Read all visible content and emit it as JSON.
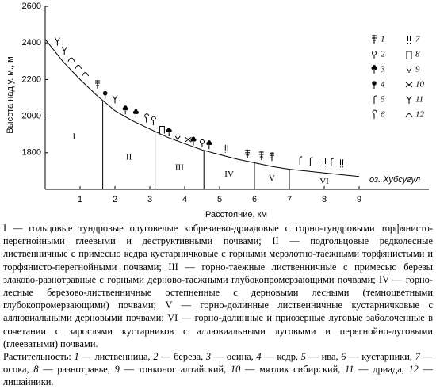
{
  "chart_data": {
    "type": "line",
    "y_label": "Высота над у. м., м",
    "x_label": "Расстояние, км",
    "xlim": [
      0,
      11
    ],
    "ylim": [
      1600,
      2600
    ],
    "xticks": [
      1,
      2,
      3,
      4,
      5,
      6,
      7,
      8,
      9
    ],
    "yticks": [
      1800,
      2000,
      2200,
      2400,
      2600
    ],
    "x": [
      0,
      0.5,
      1,
      1.5,
      2,
      2.5,
      3,
      3.5,
      4,
      4.5,
      5,
      5.5,
      6,
      6.5,
      7,
      7.5,
      8,
      8.5,
      9
    ],
    "series": [
      {
        "color": "#000000",
        "values": [
          2420,
          2300,
          2200,
          2110,
          2030,
          1975,
          1930,
          1885,
          1850,
          1815,
          1790,
          1765,
          1745,
          1725,
          1710,
          1700,
          1690,
          1680,
          1670
        ]
      }
    ],
    "zone_boundaries": [
      1.65,
      3.15,
      4.55,
      6.0,
      7.0
    ],
    "zone_labels": [
      "I",
      "II",
      "III",
      "IV",
      "V",
      "VI"
    ],
    "lake_label": "оз. Хубсугул",
    "markers": {
      "x": [
        0.35,
        0.55,
        0.75,
        0.95,
        1.15,
        1.5,
        1.72,
        2.0,
        2.3,
        2.6,
        2.9,
        3.1,
        3.35,
        3.55,
        3.8,
        4.1,
        4.25,
        4.5,
        4.7,
        5.2,
        5.8,
        6.2,
        6.5,
        7.3,
        7.6,
        8.0,
        8.2,
        8.5
      ],
      "y": [
        2385,
        2335,
        2290,
        2250,
        2210,
        2150,
        2095,
        2070,
        2010,
        1990,
        1965,
        1950,
        1905,
        1890,
        1860,
        1850,
        1840,
        1830,
        1820,
        1800,
        1770,
        1760,
        1755,
        1735,
        1730,
        1725,
        1725,
        1720
      ],
      "kind": [
        11,
        11,
        12,
        12,
        12,
        1,
        4,
        11,
        3,
        3,
        6,
        6,
        8,
        3,
        9,
        10,
        3,
        2,
        3,
        7,
        1,
        1,
        1,
        5,
        5,
        7,
        5,
        7
      ]
    },
    "legend": [
      "1",
      "2",
      "3",
      "4",
      "5",
      "6",
      "7",
      "8",
      "9",
      "10",
      "11",
      "12"
    ]
  },
  "caption": {
    "zones": "I — гольцовые тундровые олуговелые кобрезиево-дриадовые с горно-тундровыми торфянисто-перегнойными глеевыми и деструктивными почвами; II — подгольцовые редколесные лиственничные с примесью кедра кустарничковые с горными мерзлотно-таежными торфянистыми и торфянисто-перегнойными почвами; III — горно-таежные лиственничные с примесью березы злаково-разнотравные с горными дерново-таежными глубокопромерзающими почвами; IV — горно-лесные березово-лиственничные остепненные с дерновыми лесными (темноцветными глубокопромерзающими) почвами; V — горно-долинные лиственничные кустарничковые с аллювиальными дерновыми почвами; VI — горно-долинные и приозерные луговые заболоченные в сочетании с зарослями кустарников с аллювиальными луговыми и перегнойно-луговыми (глееватыми) почвами.",
    "vegetation_title": "Растительность:",
    "vegetation": [
      {
        "n": "1",
        "name": " — лиственница,"
      },
      {
        "n": "2",
        "name": " — береза,"
      },
      {
        "n": "3",
        "name": " — осина,"
      },
      {
        "n": "4",
        "name": " — кедр,"
      },
      {
        "n": "5",
        "name": " — ива,"
      },
      {
        "n": "6",
        "name": " — кустарники,"
      },
      {
        "n": "7",
        "name": " — осока,"
      },
      {
        "n": "8",
        "name": " — разнотравье,"
      },
      {
        "n": "9",
        "name": " — тонконог алтайский,"
      },
      {
        "n": "10",
        "name": " — мятлик сибирский,"
      },
      {
        "n": "11",
        "name": " — дриада,"
      },
      {
        "n": "12",
        "name": " — лишайники."
      }
    ]
  }
}
